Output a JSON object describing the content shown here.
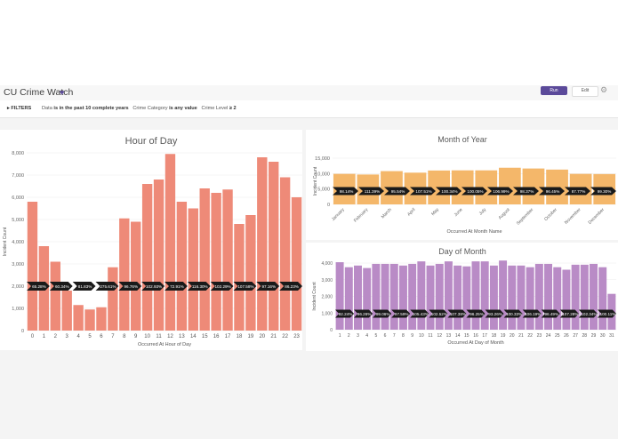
{
  "app": {
    "title": "CU Crime Watch",
    "run_label": "Run",
    "edit_label": "Edit"
  },
  "filters": {
    "toggle_label": "FILTERS",
    "f1_field": "Data",
    "f1_value": "is in the past 10 complete years",
    "f2_field": "Crime Category",
    "f2_value": "is any value",
    "f3_field": "Crime Level",
    "f3_value": "≥ 2"
  },
  "colors": {
    "hour": "#ee8a78",
    "month": "#f4b76a",
    "day": "#b98bc6",
    "arrow": "#1a1a1a",
    "accent": "#5b4a9a"
  },
  "chart_data": [
    {
      "type": "bar",
      "title": "Hour of Day",
      "xlabel": "Occurred At Hour of Day",
      "ylabel": "Incident Count",
      "ylim": [
        0,
        8000
      ],
      "yticks": [
        "0",
        "1,000",
        "2,000",
        "3,000",
        "4,000",
        "5,000",
        "6,000",
        "7,000",
        "8,000"
      ],
      "categories": [
        "0",
        "1",
        "2",
        "3",
        "4",
        "5",
        "6",
        "7",
        "8",
        "9",
        "10",
        "11",
        "12",
        "13",
        "14",
        "15",
        "16",
        "17",
        "18",
        "19",
        "20",
        "21",
        "22",
        "23"
      ],
      "values": [
        5800,
        3800,
        3100,
        1800,
        1150,
        950,
        1050,
        2850,
        5050,
        4900,
        6600,
        6800,
        7950,
        5800,
        5500,
        6400,
        6200,
        6350,
        4800,
        5200,
        7800,
        7600,
        6900,
        6000
      ],
      "annotations": [
        "65.28%",
        "60.34%",
        "81.83%",
        "275.61%",
        "96.76%",
        "102.93%",
        "72.91%",
        "116.30%",
        "102.29%",
        "107.58%",
        "97.16%",
        "86.23%"
      ]
    },
    {
      "type": "bar",
      "title": "Month of Year",
      "xlabel": "Occurred At Month Name",
      "ylabel": "Incident Count",
      "ylim": [
        0,
        15000
      ],
      "yticks": [
        "0",
        "5,000",
        "10,000",
        "15,000"
      ],
      "categories": [
        "January",
        "February",
        "March",
        "April",
        "May",
        "June",
        "July",
        "August",
        "September",
        "October",
        "November",
        "December"
      ],
      "values": [
        9900,
        9700,
        10800,
        10300,
        11000,
        11050,
        11050,
        11900,
        11650,
        11300,
        9900,
        9850
      ],
      "annotations": [
        "98.14%",
        "111.39%",
        "95.54%",
        "107.51%",
        "100.34%",
        "100.05%",
        "106.99%",
        "98.37%",
        "96.45%",
        "87.77%",
        "99.30%"
      ]
    },
    {
      "type": "bar",
      "title": "Day of Month",
      "xlabel": "Occurred At Day of Month",
      "ylabel": "Incident Count",
      "ylim": [
        0,
        4000
      ],
      "yticks": [
        "0",
        "1,000",
        "2,000",
        "3,000",
        "4,000"
      ],
      "categories": [
        "1",
        "2",
        "3",
        "4",
        "5",
        "6",
        "7",
        "8",
        "9",
        "10",
        "11",
        "12",
        "13",
        "14",
        "15",
        "16",
        "17",
        "18",
        "19",
        "20",
        "21",
        "22",
        "23",
        "24",
        "25",
        "26",
        "27",
        "28",
        "29",
        "30",
        "31"
      ],
      "values": [
        4050,
        3750,
        3850,
        3700,
        3950,
        3950,
        3950,
        3850,
        3950,
        4100,
        3850,
        3950,
        4100,
        3850,
        3800,
        4100,
        4100,
        3850,
        4150,
        3850,
        3850,
        3750,
        3950,
        3950,
        3750,
        3600,
        3900,
        3900,
        3950,
        3750,
        2150
      ],
      "annotations": [
        "92.24%",
        "96.26%",
        "99.06%",
        "97.59%",
        "105.43%",
        "102.52%",
        "107.38%",
        "96.25%",
        "93.26%",
        "100.33%",
        "106.19%",
        "96.49%",
        "107.28%",
        "102.34%",
        "100.11%"
      ]
    }
  ]
}
